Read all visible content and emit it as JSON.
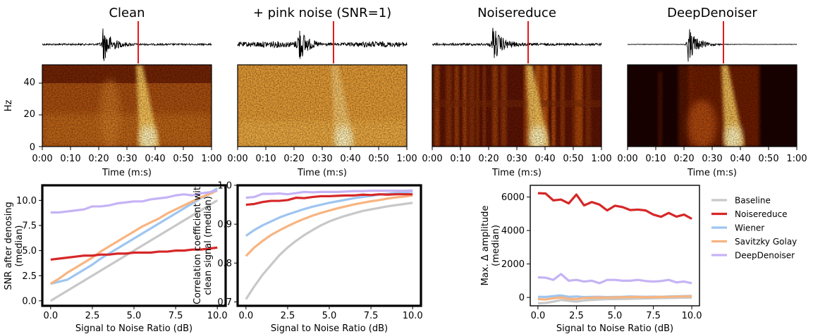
{
  "colors": {
    "Baseline": "#c8c8c8",
    "Noisereduce": "#d62728",
    "Wiener": "#9ec5f0",
    "Savitzky Golay": "#f8b480",
    "DeepDenoiser": "#c5b3f5",
    "pick_line": "#e31a1c",
    "waveform": "#000000"
  },
  "panels": [
    {
      "title": "Clean",
      "style": "clean"
    },
    {
      "title": "+ pink noise (SNR=1)",
      "style": "noisy"
    },
    {
      "title": "Noisereduce",
      "style": "nr"
    },
    {
      "title": "DeepDenoiser",
      "style": "dd"
    }
  ],
  "spectrogram": {
    "ylabel": "Hz",
    "yticks": [
      "0",
      "20",
      "40"
    ],
    "xticks": [
      "0:00",
      "0:10",
      "0:20",
      "0:30",
      "0:40",
      "0:50",
      "1:00"
    ],
    "xlabel": "Time (m:s)",
    "pick_time_s": 34,
    "colormap": "afmhot"
  },
  "chart_data": [
    {
      "type": "line",
      "xlabel": "Signal to Noise Ratio (dB)",
      "ylabel": "SNR after denosing (median)",
      "xlim": [
        -0.5,
        10.5
      ],
      "ylim": [
        -0.5,
        11.5
      ],
      "xticks": [
        "0.0",
        "2.5",
        "5.0",
        "7.5",
        "10.0"
      ],
      "yticks": [
        "0.0",
        "2.5",
        "5.0",
        "7.5",
        "10.0"
      ],
      "x": [
        0,
        0.5,
        1,
        1.5,
        2,
        2.5,
        3,
        3.5,
        4,
        4.5,
        5,
        5.5,
        6,
        6.5,
        7,
        7.5,
        8,
        8.5,
        9,
        9.5,
        10
      ],
      "series": [
        {
          "name": "Baseline",
          "values": [
            0,
            0.5,
            1,
            1.5,
            2,
            2.5,
            3,
            3.5,
            4,
            4.5,
            5,
            5.5,
            6,
            6.5,
            7,
            7.5,
            8,
            8.5,
            9,
            9.5,
            10
          ]
        },
        {
          "name": "Wiener",
          "values": [
            1.7,
            1.9,
            2.1,
            2.6,
            3.1,
            3.6,
            4.2,
            4.7,
            5.2,
            5.7,
            6.2,
            6.7,
            7.2,
            7.7,
            8.2,
            8.7,
            9.2,
            9.7,
            10.2,
            10.7,
            11.2
          ]
        },
        {
          "name": "Savitzky Golay",
          "values": [
            1.7,
            2.2,
            2.8,
            3.3,
            3.8,
            4.3,
            4.9,
            5.4,
            5.9,
            6.4,
            6.9,
            7.4,
            7.8,
            8.2,
            8.7,
            9.1,
            9.5,
            9.9,
            10.3,
            10.6,
            11.0
          ]
        },
        {
          "name": "Noisereduce",
          "values": [
            4.1,
            4.2,
            4.3,
            4.4,
            4.5,
            4.5,
            4.6,
            4.6,
            4.7,
            4.7,
            4.8,
            4.8,
            4.8,
            4.9,
            4.9,
            5.0,
            5.0,
            5.1,
            5.1,
            5.2,
            5.3
          ]
        },
        {
          "name": "DeepDenoiser",
          "values": [
            8.8,
            8.8,
            8.9,
            9.0,
            9.1,
            9.4,
            9.4,
            9.5,
            9.7,
            9.8,
            9.9,
            9.9,
            10.1,
            10.2,
            10.3,
            10.5,
            10.6,
            10.5,
            10.7,
            10.8,
            11.0
          ]
        }
      ]
    },
    {
      "type": "line",
      "xlabel": "Signal to Noise Ratio (dB)",
      "ylabel": "Correlation coefficient wit clean signal (median)",
      "ylabel_lines": [
        "Correlation coefficient wit",
        "clean signal (median)"
      ],
      "xlim": [
        -0.5,
        10.5
      ],
      "ylim": [
        0.69,
        1.0
      ],
      "xticks": [
        "0.0",
        "2.5",
        "5.0",
        "7.5",
        "10.0"
      ],
      "yticks": [
        "0.7",
        "0.8",
        "0.9",
        "1.0"
      ],
      "x": [
        0,
        0.5,
        1,
        1.5,
        2,
        2.5,
        3,
        3.5,
        4,
        4.5,
        5,
        5.5,
        6,
        6.5,
        7,
        7.5,
        8,
        8.5,
        9,
        9.5,
        10
      ],
      "series": [
        {
          "name": "Baseline",
          "values": [
            0.707,
            0.74,
            0.77,
            0.795,
            0.82,
            0.84,
            0.857,
            0.872,
            0.885,
            0.897,
            0.907,
            0.915,
            0.922,
            0.928,
            0.934,
            0.938,
            0.942,
            0.946,
            0.949,
            0.952,
            0.955
          ]
        },
        {
          "name": "Savitzky Golay",
          "values": [
            0.818,
            0.84,
            0.857,
            0.872,
            0.884,
            0.895,
            0.905,
            0.914,
            0.922,
            0.929,
            0.935,
            0.941,
            0.946,
            0.951,
            0.955,
            0.959,
            0.962,
            0.966,
            0.969,
            0.971,
            0.974
          ]
        },
        {
          "name": "Wiener",
          "values": [
            0.87,
            0.885,
            0.897,
            0.907,
            0.917,
            0.925,
            0.932,
            0.939,
            0.945,
            0.95,
            0.955,
            0.959,
            0.963,
            0.967,
            0.97,
            0.973,
            0.976,
            0.978,
            0.98,
            0.982,
            0.984
          ]
        },
        {
          "name": "Noisereduce",
          "values": [
            0.95,
            0.952,
            0.957,
            0.96,
            0.96,
            0.962,
            0.968,
            0.967,
            0.97,
            0.972,
            0.972,
            0.973,
            0.974,
            0.974,
            0.976,
            0.975,
            0.977,
            0.976,
            0.977,
            0.977,
            0.977
          ]
        },
        {
          "name": "DeepDenoiser",
          "values": [
            0.968,
            0.97,
            0.978,
            0.978,
            0.979,
            0.977,
            0.98,
            0.983,
            0.982,
            0.983,
            0.983,
            0.983,
            0.984,
            0.985,
            0.985,
            0.986,
            0.986,
            0.986,
            0.986,
            0.986,
            0.987
          ]
        }
      ]
    },
    {
      "type": "line",
      "xlabel": "Signal to Noise Ratio (dB)",
      "ylabel": "Max. Δ amplitude (median)",
      "ylabel_lines": [
        "Max. Δ amplitude",
        "(median)"
      ],
      "xlim": [
        -0.5,
        10.5
      ],
      "ylim": [
        -500,
        6700
      ],
      "xticks": [
        "0.0",
        "2.5",
        "5.0",
        "7.5",
        "10.0"
      ],
      "yticks": [
        "0",
        "2000",
        "4000",
        "6000"
      ],
      "x": [
        0,
        0.5,
        1,
        1.5,
        2,
        2.5,
        3,
        3.5,
        4,
        4.5,
        5,
        5.5,
        6,
        6.5,
        7,
        7.5,
        8,
        8.5,
        9,
        9.5,
        10
      ],
      "series": [
        {
          "name": "Baseline",
          "values": [
            -350,
            -330,
            -250,
            -150,
            -200,
            -250,
            -180,
            -150,
            -120,
            -100,
            -100,
            -90,
            -80,
            -70,
            -60,
            -50,
            -40,
            -30,
            -20,
            -10,
            -10
          ]
        },
        {
          "name": "Wiener",
          "values": [
            40,
            30,
            80,
            120,
            40,
            60,
            20,
            30,
            40,
            20,
            30,
            40,
            60,
            50,
            40,
            50,
            40,
            60,
            70,
            80,
            90
          ]
        },
        {
          "name": "Savitzky Golay",
          "values": [
            -100,
            -120,
            -50,
            0,
            -80,
            -100,
            -30,
            -20,
            0,
            -10,
            0,
            10,
            20,
            30,
            10,
            20,
            30,
            40,
            50,
            60,
            70
          ]
        },
        {
          "name": "Noisereduce",
          "values": [
            6230,
            6210,
            5800,
            5850,
            5620,
            6150,
            5500,
            5700,
            5550,
            5200,
            5480,
            5400,
            5220,
            5250,
            5200,
            4950,
            4820,
            5050,
            4830,
            4950,
            4700
          ]
        },
        {
          "name": "DeepDenoiser",
          "values": [
            1200,
            1180,
            1050,
            1400,
            1000,
            1050,
            950,
            1000,
            850,
            1050,
            1050,
            1000,
            1000,
            1050,
            980,
            950,
            980,
            1050,
            900,
            950,
            850
          ]
        }
      ]
    }
  ],
  "legend": {
    "placement": "right",
    "entries": [
      "Baseline",
      "Noisereduce",
      "Wiener",
      "Savitzky Golay",
      "DeepDenoiser"
    ]
  }
}
